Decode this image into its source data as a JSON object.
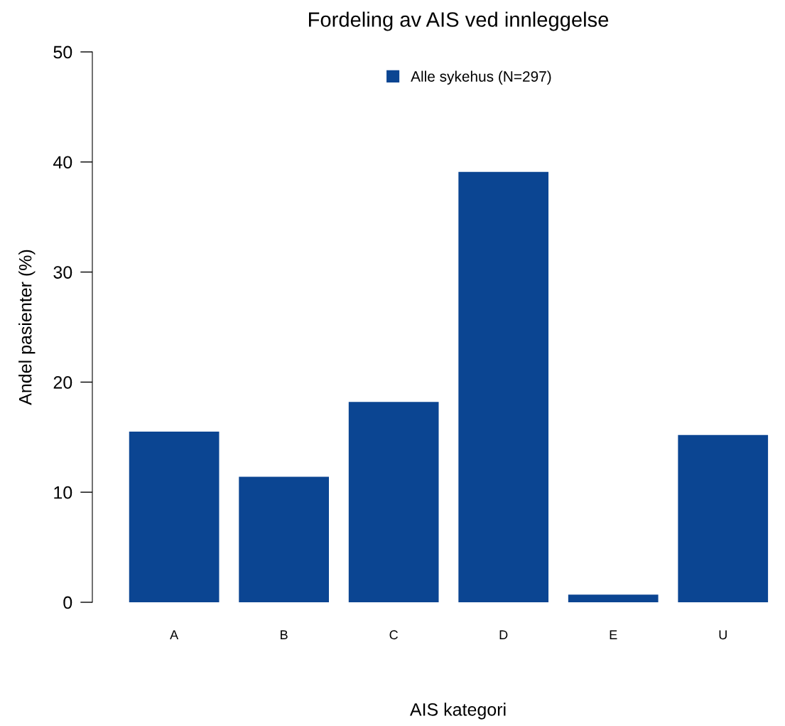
{
  "chart_data": {
    "type": "bar",
    "title": "Fordeling av AIS ved innleggelse",
    "xlabel": "AIS kategori",
    "ylabel": "Andel pasienter (%)",
    "categories": [
      "A",
      "B",
      "C",
      "D",
      "E",
      "U"
    ],
    "series": [
      {
        "name": "Alle sykehus (N=297)",
        "color": "#0b4592",
        "values": [
          15.5,
          11.4,
          18.2,
          39.1,
          0.7,
          15.2
        ]
      }
    ],
    "ylim": [
      0,
      50
    ],
    "yticks": [
      0,
      10,
      20,
      30,
      40,
      50
    ],
    "grid": false,
    "legend": "top"
  }
}
